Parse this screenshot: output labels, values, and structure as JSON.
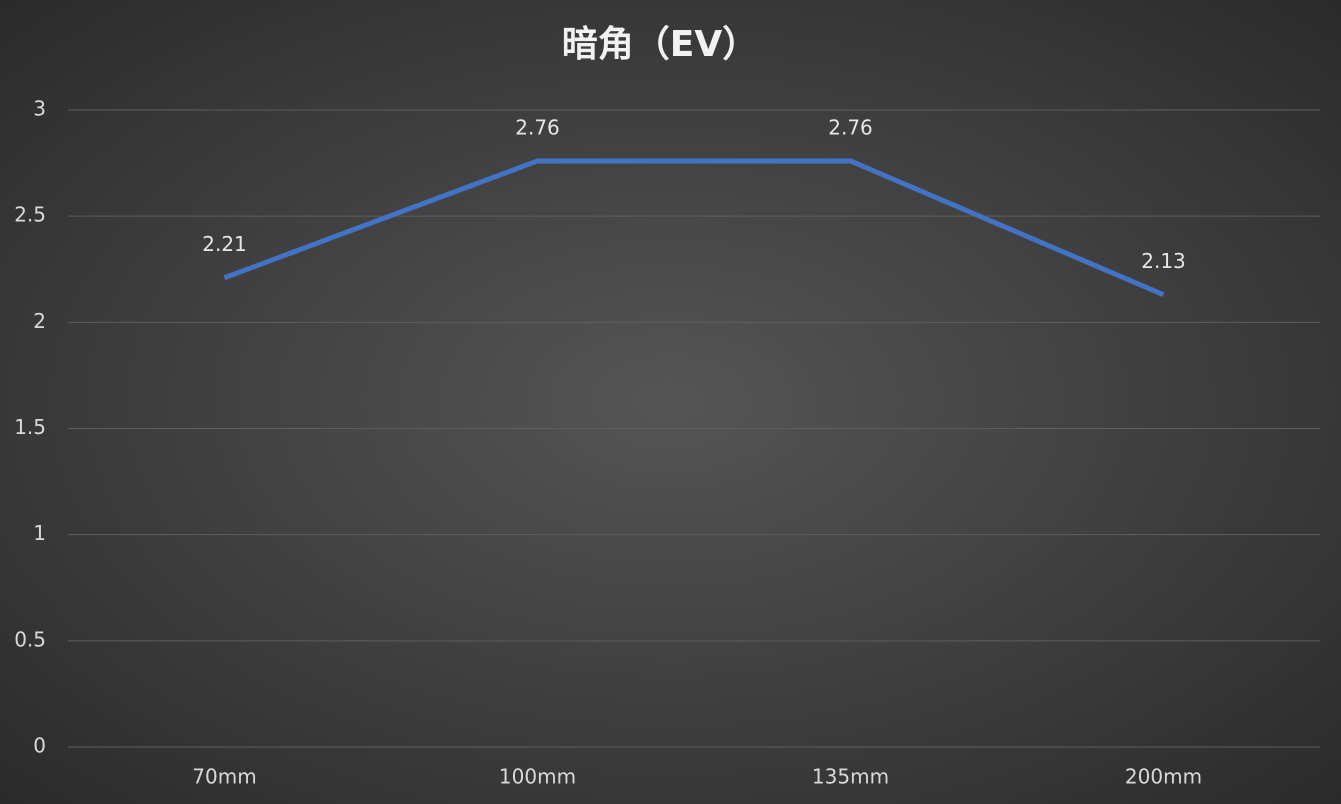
{
  "chart_data": {
    "type": "line",
    "title": "暗角（EV）",
    "categories": [
      "70mm",
      "100mm",
      "135mm",
      "200mm"
    ],
    "values": [
      2.21,
      2.76,
      2.76,
      2.13
    ],
    "color": "#4472c4",
    "ylim": [
      0,
      3
    ],
    "yticks": [
      0,
      0.5,
      1,
      1.5,
      2,
      2.5,
      3
    ],
    "grid": true
  }
}
